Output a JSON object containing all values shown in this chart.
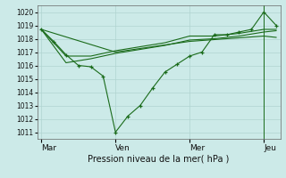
{
  "bg_color": "#cceae8",
  "grid_color": "#b0d4d0",
  "line_color": "#1a6b1a",
  "axis_label": "Pression niveau de la mer( hPa )",
  "xtick_labels": [
    "Mar",
    "Ven",
    "Mer",
    "Jeu"
  ],
  "ylim": [
    1010.5,
    1020.5
  ],
  "yticks": [
    1011,
    1012,
    1013,
    1014,
    1015,
    1016,
    1017,
    1018,
    1019,
    1020
  ],
  "line1_x": [
    0,
    12,
    24,
    36,
    48,
    60,
    72,
    84,
    96,
    108,
    120,
    132,
    144,
    156,
    168,
    180,
    192,
    204,
    216,
    228
  ],
  "line1_y": [
    1018.7,
    1017.8,
    1016.8,
    1016.0,
    1015.9,
    1015.2,
    1011.0,
    1012.2,
    1013.0,
    1014.3,
    1015.5,
    1016.1,
    1016.7,
    1017.0,
    1018.3,
    1018.3,
    1018.5,
    1018.7,
    1020.0,
    1019.0
  ],
  "line2_x": [
    0,
    24,
    48,
    72,
    96,
    120,
    144,
    168,
    192,
    216,
    228
  ],
  "line2_y": [
    1018.7,
    1016.7,
    1016.7,
    1017.1,
    1017.4,
    1017.7,
    1018.2,
    1018.2,
    1018.4,
    1018.7,
    1018.7
  ],
  "line3_x": [
    0,
    24,
    48,
    72,
    96,
    120,
    144,
    168,
    192,
    216,
    228
  ],
  "line3_y": [
    1018.7,
    1016.2,
    1016.5,
    1016.9,
    1017.2,
    1017.5,
    1017.9,
    1018.0,
    1018.2,
    1018.5,
    1018.6
  ],
  "line4_x": [
    0,
    72,
    144,
    216,
    228
  ],
  "line4_y": [
    1018.7,
    1017.0,
    1017.8,
    1018.2,
    1018.1
  ],
  "vline_x": 216,
  "xlim": [
    -4,
    232
  ],
  "xtick_positions": [
    0,
    72,
    144,
    216
  ]
}
